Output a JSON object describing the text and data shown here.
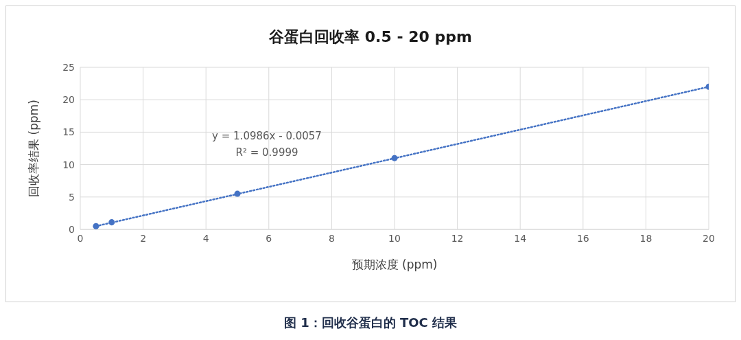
{
  "chart_data": {
    "type": "scatter",
    "title": "谷蛋白回收率 0.5 - 20 ppm",
    "xlabel": "预期浓度 (ppm)",
    "ylabel": "回收率结果 (ppm)",
    "annotations": [
      "y = 1.0986x - 0.0057",
      "R² = 0.9999",
      "图 1：回收谷蛋白的 TOC 结果"
    ],
    "x": [
      0.5,
      1,
      5,
      10,
      20
    ],
    "series": [
      {
        "color": "#4472c4",
        "values": [
          0.5,
          1.1,
          5.5,
          11,
          22
        ],
        "marker": "circle"
      },
      {
        "type": "line",
        "color": "#4472c4",
        "x": [
          0.5,
          20
        ],
        "values": [
          0.5,
          22
        ],
        "line_style": "dotted",
        "marker": "none"
      }
    ],
    "xlim": [
      0,
      20
    ],
    "xticks": [
      0,
      2,
      4,
      6,
      8,
      10,
      12,
      14,
      16,
      18,
      20
    ],
    "ylim": [
      0,
      25
    ],
    "yticks": [
      0,
      5,
      10,
      15,
      20,
      25
    ],
    "grid": true,
    "legend": false
  }
}
